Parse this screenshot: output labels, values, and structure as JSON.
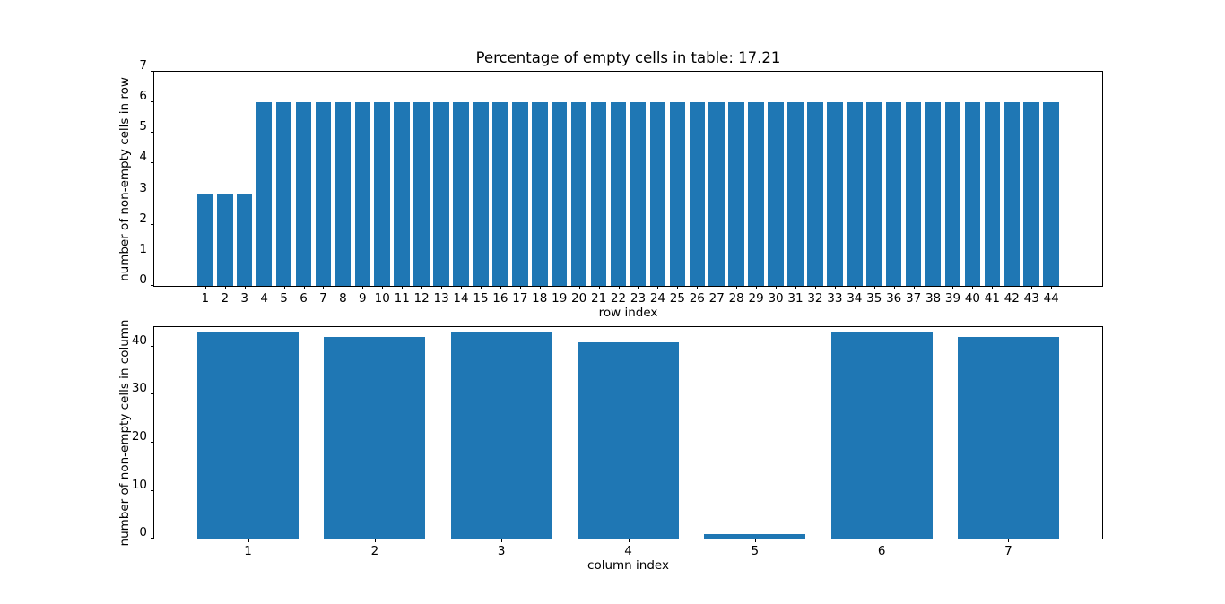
{
  "chart_data": [
    {
      "type": "bar",
      "title": "Percentage of empty cells in table: 17.21",
      "xlabel": "row index",
      "ylabel": "number of non-empty cells in row",
      "categories": [
        1,
        2,
        3,
        4,
        5,
        6,
        7,
        8,
        9,
        10,
        11,
        12,
        13,
        14,
        15,
        16,
        17,
        18,
        19,
        20,
        21,
        22,
        23,
        24,
        25,
        26,
        27,
        28,
        29,
        30,
        31,
        32,
        33,
        34,
        35,
        36,
        37,
        38,
        39,
        40,
        41,
        42,
        43,
        44
      ],
      "values": [
        3,
        3,
        3,
        6,
        6,
        6,
        6,
        6,
        6,
        6,
        6,
        6,
        6,
        6,
        6,
        6,
        6,
        6,
        6,
        6,
        6,
        6,
        6,
        6,
        6,
        6,
        6,
        6,
        6,
        6,
        6,
        6,
        6,
        6,
        6,
        6,
        6,
        6,
        6,
        6,
        6,
        6,
        6,
        6
      ],
      "yticks": [
        0,
        1,
        2,
        3,
        4,
        5,
        6,
        7
      ],
      "ylim": [
        0,
        7
      ],
      "xlim": [
        -1.59,
        46.59
      ],
      "bar_width": 0.8,
      "bar_color": "#1f77b4",
      "grid": false,
      "legend": null
    },
    {
      "type": "bar",
      "title": "",
      "xlabel": "column index",
      "ylabel": "number of non-empty cells in column",
      "categories": [
        1,
        2,
        3,
        4,
        5,
        6,
        7
      ],
      "values": [
        43,
        42,
        43,
        41,
        1,
        43,
        42
      ],
      "yticks": [
        0,
        10,
        20,
        30,
        40
      ],
      "ylim": [
        0,
        44.1
      ],
      "xlim": [
        0.26,
        7.74
      ],
      "bar_width": 0.8,
      "bar_color": "#1f77b4",
      "grid": false,
      "legend": null
    }
  ]
}
